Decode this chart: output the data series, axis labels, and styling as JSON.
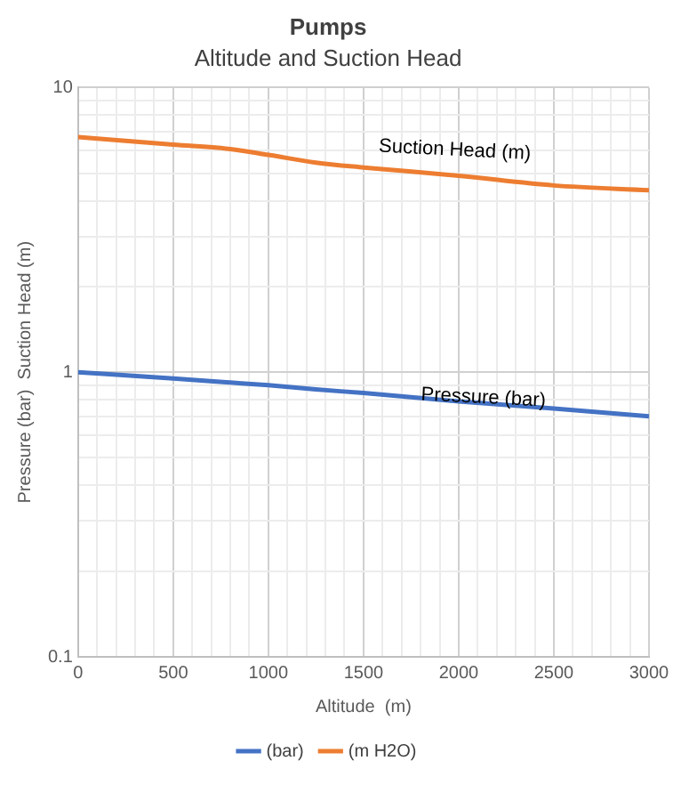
{
  "chart_data": {
    "type": "line",
    "title": "Pumps",
    "subtitle": "Altitude and Suction Head",
    "xlabel": "Altitude  (m)",
    "ylabel": "Pressure (bar)  Suction Head (m)",
    "x": [
      0,
      500,
      800,
      1000,
      1250,
      1500,
      2000,
      2500,
      3000
    ],
    "series": [
      {
        "name": "(bar)",
        "color": "#4472c4",
        "values": [
          1.0,
          0.95,
          0.92,
          0.9,
          0.87,
          0.845,
          0.79,
          0.745,
          0.7
        ]
      },
      {
        "name": "(m H2O)",
        "color": "#ed7d31",
        "values": [
          6.7,
          6.3,
          6.08,
          5.8,
          5.45,
          5.24,
          4.9,
          4.53,
          4.36
        ]
      }
    ],
    "xlim": [
      0,
      3000
    ],
    "xticks": [
      0,
      {
        "value": 100,
        "label": null
      },
      {
        "value": 200,
        "label": null
      },
      {
        "value": 300,
        "label": null
      },
      {
        "value": 400,
        "label": null
      },
      500,
      {
        "value": 600,
        "label": null
      },
      {
        "value": 700,
        "label": null
      },
      {
        "value": 800,
        "label": null
      },
      {
        "value": 900,
        "label": null
      },
      1000,
      {
        "value": 1100,
        "label": null
      },
      {
        "value": 1200,
        "label": null
      },
      {
        "value": 1300,
        "label": null
      },
      {
        "value": 1400,
        "label": null
      },
      1500,
      {
        "value": 1600,
        "label": null
      },
      {
        "value": 1700,
        "label": null
      },
      {
        "value": 1800,
        "label": null
      },
      {
        "value": 1900,
        "label": null
      },
      2000,
      {
        "value": 2100,
        "label": null
      },
      {
        "value": 2200,
        "label": null
      },
      {
        "value": 2300,
        "label": null
      },
      {
        "value": 2400,
        "label": null
      },
      2500,
      {
        "value": 2600,
        "label": null
      },
      {
        "value": 2700,
        "label": null
      },
      {
        "value": 2800,
        "label": null
      },
      {
        "value": 2900,
        "label": null
      },
      3000
    ],
    "ylim": [
      0.1,
      10
    ],
    "yticks": [
      0.1,
      {
        "value": 0.2,
        "label": null
      },
      {
        "value": 0.3,
        "label": null
      },
      {
        "value": 0.4,
        "label": null
      },
      {
        "value": 0.5,
        "label": null
      },
      {
        "value": 0.6,
        "label": null
      },
      {
        "value": 0.7,
        "label": null
      },
      {
        "value": 0.8,
        "label": null
      },
      {
        "value": 0.9,
        "label": null
      },
      1,
      {
        "value": 2,
        "label": null
      },
      {
        "value": 3,
        "label": null
      },
      {
        "value": 4,
        "label": null
      },
      {
        "value": 5,
        "label": null
      },
      {
        "value": 6,
        "label": null
      },
      {
        "value": 7,
        "label": null
      },
      {
        "value": 8,
        "label": null
      },
      {
        "value": 9,
        "label": null
      },
      10
    ],
    "log": "y",
    "grid": true,
    "legend": "bottom",
    "marker": "none",
    "line_style": "solid",
    "annotations": [
      "Suction Head (m)",
      "Pressure (bar)"
    ]
  }
}
